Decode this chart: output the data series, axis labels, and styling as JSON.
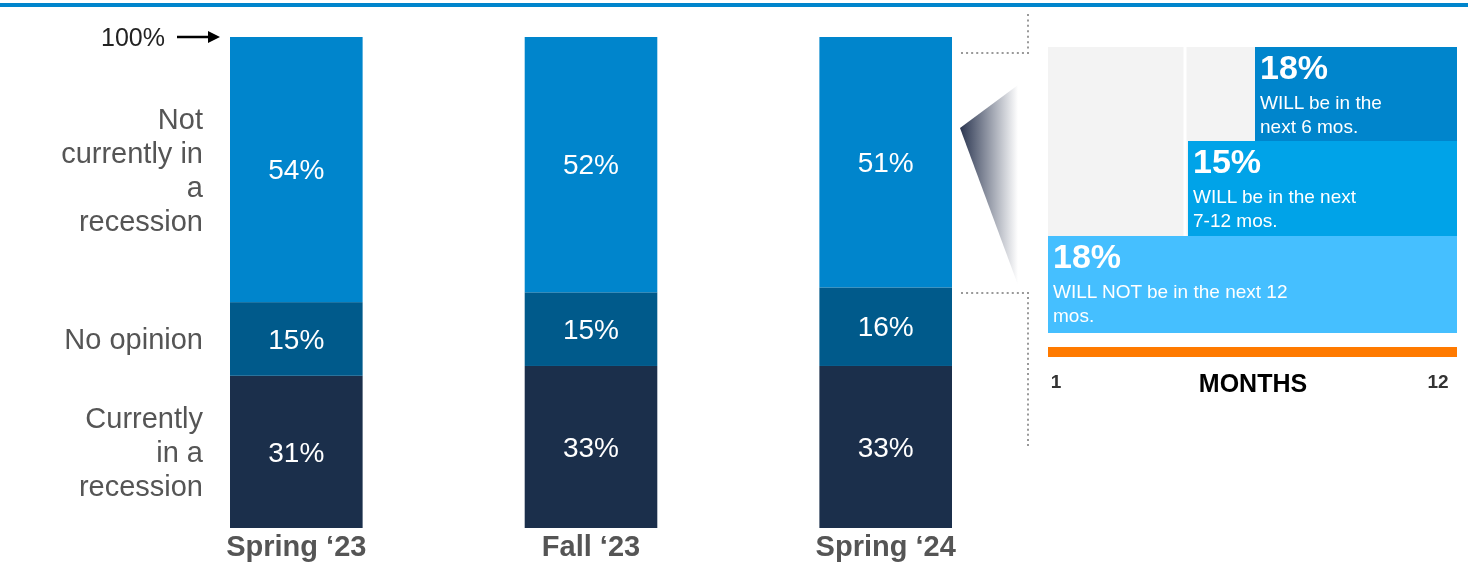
{
  "chart_data": [
    {
      "type": "bar",
      "stacked": true,
      "categories": [
        "Spring ‘23",
        "Fall ‘23",
        "Spring ‘24"
      ],
      "series": [
        {
          "name": "Currently in a recession",
          "color": "#1b2f4b",
          "values": [
            31,
            33,
            33
          ],
          "value_labels": [
            "31%",
            "33%",
            "33%"
          ]
        },
        {
          "name": "No opinion",
          "color": "#005a8b",
          "values": [
            15,
            15,
            16
          ],
          "value_labels": [
            "15%",
            "15%",
            "16%"
          ]
        },
        {
          "name": "Not currently in a recession",
          "color": "#0085cc",
          "values": [
            54,
            52,
            51
          ],
          "value_labels": [
            "54%",
            "52%",
            "51%"
          ]
        }
      ],
      "annotations": [
        "100%"
      ]
    },
    {
      "type": "other",
      "xlabel": "MONTHS",
      "colors": [
        "#0085cc",
        "#00a3e8",
        "#45bfff"
      ],
      "annotations": [
        "18%",
        "WILL be in the next 6 mos.",
        "15%",
        "WILL be in the next 7-12 mos.",
        "18%",
        "WILL NOT be in the next 12 mos.",
        "1",
        "12"
      ]
    }
  ]
}
